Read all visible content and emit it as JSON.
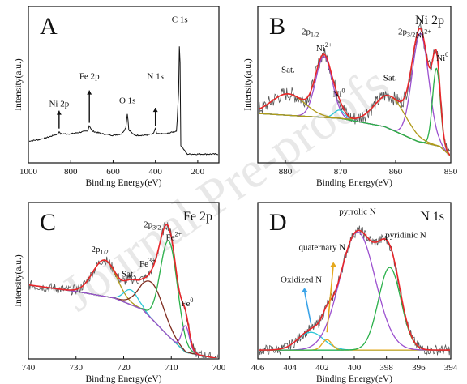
{
  "watermark": "Journal Pre-proofs",
  "colors": {
    "raw": "#555555",
    "fit": "#e8262a",
    "background": "#7a2a2a",
    "green": "#2ab04a",
    "purple": "#9b4fcf",
    "olive": "#b09a1a",
    "cyan": "#2bc7d8",
    "brown": "#7f2c1f",
    "gold": "#e5a81c"
  },
  "chart_data": [
    {
      "panel": "A",
      "type": "line",
      "title": "",
      "xlabel": "Binding Energy(eV)",
      "ylabel": "Intensity(a.u.)",
      "xlim": [
        1000,
        100
      ],
      "xreverse": true,
      "xticks": [
        1000,
        800,
        600,
        400,
        200
      ],
      "survey": [
        [
          1000,
          0.15
        ],
        [
          950,
          0.16
        ],
        [
          900,
          0.18
        ],
        [
          860,
          0.2
        ],
        [
          855,
          0.22
        ],
        [
          850,
          0.2
        ],
        [
          800,
          0.2
        ],
        [
          760,
          0.21
        ],
        [
          720,
          0.22
        ],
        [
          712,
          0.26
        ],
        [
          706,
          0.24
        ],
        [
          700,
          0.22
        ],
        [
          650,
          0.2
        ],
        [
          600,
          0.19
        ],
        [
          560,
          0.2
        ],
        [
          540,
          0.24
        ],
        [
          532,
          0.35
        ],
        [
          526,
          0.23
        ],
        [
          500,
          0.19
        ],
        [
          450,
          0.19
        ],
        [
          410,
          0.2
        ],
        [
          400,
          0.24
        ],
        [
          395,
          0.2
        ],
        [
          350,
          0.2
        ],
        [
          300,
          0.22
        ],
        [
          290,
          0.5
        ],
        [
          285,
          1.0
        ],
        [
          283,
          0.6
        ],
        [
          280,
          0.12
        ],
        [
          250,
          0.06
        ],
        [
          200,
          0.06
        ],
        [
          150,
          0.06
        ],
        [
          100,
          0.06
        ]
      ],
      "annotations": [
        {
          "label": "Ni 2p",
          "x": 855
        },
        {
          "label": "Fe 2p",
          "x": 712
        },
        {
          "label": "O 1s",
          "x": 532
        },
        {
          "label": "N 1s",
          "x": 400
        },
        {
          "label": "C 1s",
          "x": 285
        }
      ]
    },
    {
      "panel": "B",
      "type": "line",
      "title": "Ni 2p",
      "xlabel": "Binding Energy(eV)",
      "ylabel": "Intensity(a.u.)",
      "xlim": [
        885,
        850
      ],
      "xreverse": true,
      "xticks": [
        880,
        870,
        860,
        850
      ],
      "baseline": [
        [
          885,
          0.3
        ],
        [
          870,
          0.27
        ],
        [
          862,
          0.22
        ],
        [
          856,
          0.13
        ],
        [
          852,
          0.1
        ],
        [
          850,
          0.04
        ]
      ],
      "components": [
        {
          "label": "Ni 2p1/2 Ni2+",
          "center": 873.0,
          "height": 0.37,
          "width": 1.5,
          "color_key": "purple"
        },
        {
          "label": "Ni 2p1/2 Ni0",
          "center": 870.2,
          "height": 0.05,
          "width": 1.0,
          "color_key": "cyan"
        },
        {
          "label": "Sat. (2p1/2)",
          "center": 879.5,
          "height": 0.13,
          "width": 3.0,
          "color_key": "olive"
        },
        {
          "label": "Ni 2p3/2 Ni2+",
          "center": 855.5,
          "height": 0.66,
          "width": 1.5,
          "color_key": "purple"
        },
        {
          "label": "Ni 2p3/2 Ni0",
          "center": 852.6,
          "height": 0.47,
          "width": 0.7,
          "color_key": "green"
        },
        {
          "label": "Sat. (2p3/2)",
          "center": 861.0,
          "height": 0.2,
          "width": 2.8,
          "color_key": "olive"
        }
      ],
      "annotations": [
        {
          "label": "Sat.",
          "x": 879.5
        },
        {
          "label": "2p",
          "sub": "1/2",
          "x": 875.5
        },
        {
          "label": "Ni",
          "sup": "2+",
          "x": 873
        },
        {
          "label": "Ni",
          "sup": "0",
          "x": 870.3
        },
        {
          "label": "2p",
          "sub": "3/2",
          "x": 858
        },
        {
          "label": "Sat.",
          "x": 861
        },
        {
          "label": "Ni",
          "sup": "2+",
          "x": 855
        },
        {
          "label": "Ni",
          "sup": "0",
          "x": 852.4
        }
      ]
    },
    {
      "panel": "C",
      "type": "line",
      "title": "Fe 2p",
      "xlabel": "Binding Energy(eV)",
      "ylabel": "Intensity(a.u.)",
      "xlim": [
        740,
        700
      ],
      "xreverse": true,
      "xticks": [
        740,
        730,
        720,
        710,
        700
      ],
      "baseline": [
        [
          740,
          0.45
        ],
        [
          730,
          0.41
        ],
        [
          722,
          0.37
        ],
        [
          716,
          0.3
        ],
        [
          711,
          0.15
        ],
        [
          707,
          0.04
        ],
        [
          700,
          0.0
        ]
      ],
      "components": [
        {
          "label": "Fe 2p1/2",
          "center": 724.0,
          "height": 0.22,
          "width": 2.5,
          "color_key": "olive"
        },
        {
          "label": "Sat.",
          "center": 718.5,
          "height": 0.09,
          "width": 1.5,
          "color_key": "cyan"
        },
        {
          "label": "Fe3+",
          "center": 714.0,
          "height": 0.22,
          "width": 2.5,
          "color_key": "brown"
        },
        {
          "label": "Fe2+",
          "center": 710.5,
          "height": 0.58,
          "width": 1.8,
          "color_key": "green"
        },
        {
          "label": "Fe0",
          "center": 707.0,
          "height": 0.16,
          "width": 0.8,
          "color_key": "purple"
        }
      ],
      "annotations": [
        {
          "label": "2p",
          "sub": "1/2",
          "x": 725
        },
        {
          "label": "Sat.",
          "x": 719
        },
        {
          "label": "2p",
          "sub": "3/2",
          "x": 714
        },
        {
          "label": "Fe",
          "sup": "3+",
          "x": 714
        },
        {
          "label": "Fe",
          "sup": "2+",
          "x": 710.5
        },
        {
          "label": "Fe",
          "sup": "0",
          "x": 707
        }
      ]
    },
    {
      "panel": "D",
      "type": "line",
      "title": "N 1s",
      "xlabel": "Binding Energy(eV)",
      "ylabel": "",
      "xlim": [
        406,
        394
      ],
      "xreverse": true,
      "xticks": [
        406,
        404,
        402,
        400,
        398,
        396,
        394
      ],
      "baseline": [
        [
          406,
          0.0
        ],
        [
          394,
          0.0
        ]
      ],
      "components": [
        {
          "label": "Oxidized N",
          "center": 402.7,
          "height": 0.12,
          "width": 0.8,
          "color_key": "cyan"
        },
        {
          "label": "quaternary N",
          "center": 401.7,
          "height": 0.07,
          "width": 0.3,
          "color_key": "gold"
        },
        {
          "label": "pyrrolic N",
          "center": 399.8,
          "height": 0.8,
          "width": 1.1,
          "color_key": "purple"
        },
        {
          "label": "pyridinic N",
          "center": 397.8,
          "height": 0.56,
          "width": 0.7,
          "color_key": "green"
        }
      ],
      "annotations": [
        {
          "label": "Oxidized N",
          "x": 402.7
        },
        {
          "label": "quaternary N",
          "x": 401.7
        },
        {
          "label": "pyrrolic N",
          "x": 399.8
        },
        {
          "label": "pyridinic N",
          "x": 397.8
        }
      ]
    }
  ]
}
